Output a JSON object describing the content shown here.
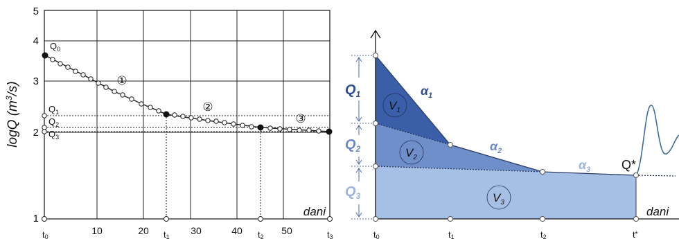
{
  "left_chart": {
    "ylabel": "logQ (m³/s)",
    "ylabel_parts": {
      "pre": "logQ (m",
      "sup": "3",
      "post": "/s)"
    },
    "xlabel": "dani",
    "y_ticks": [
      "5",
      "4",
      "3",
      "2",
      "1"
    ],
    "x_ticks": [
      "10",
      "20",
      "30",
      "40",
      "50"
    ],
    "t_labels": [
      {
        "main": "t",
        "sub": "0"
      },
      {
        "main": "t",
        "sub": "1"
      },
      {
        "main": "t",
        "sub": "2"
      },
      {
        "main": "t",
        "sub": "3"
      }
    ],
    "q_labels": [
      {
        "main": "Q",
        "sub": "0"
      },
      {
        "main": "Q",
        "sub": "1"
      },
      {
        "main": "Q",
        "sub": "2"
      },
      {
        "main": "Q",
        "sub": "3"
      }
    ],
    "segments": [
      "①",
      "②",
      "③"
    ]
  },
  "right_diagram": {
    "xlabel": "dani",
    "t_labels": [
      {
        "main": "t",
        "sub": "0"
      },
      {
        "main": "t",
        "sub": "1"
      },
      {
        "main": "t",
        "sub": "2"
      },
      {
        "main": "t",
        "sub": "*"
      }
    ],
    "q_labels": [
      {
        "main": "Q",
        "sub": "1"
      },
      {
        "main": "Q",
        "sub": "2"
      },
      {
        "main": "Q",
        "sub": "3"
      }
    ],
    "v_labels": [
      {
        "main": "V",
        "sub": "1"
      },
      {
        "main": "V",
        "sub": "2"
      },
      {
        "main": "V",
        "sub": "3"
      }
    ],
    "alpha_labels": [
      {
        "main": "α",
        "sub": "1"
      },
      {
        "main": "α",
        "sub": "2"
      },
      {
        "main": "α",
        "sub": "3"
      }
    ],
    "q_star": "Q*",
    "colors": {
      "v1": "#3a5ea8",
      "v2": "#6f8fca",
      "v3": "#a6bfe4",
      "label_dark": "#2c4d8f",
      "label_light": "#8ea8d4"
    }
  }
}
